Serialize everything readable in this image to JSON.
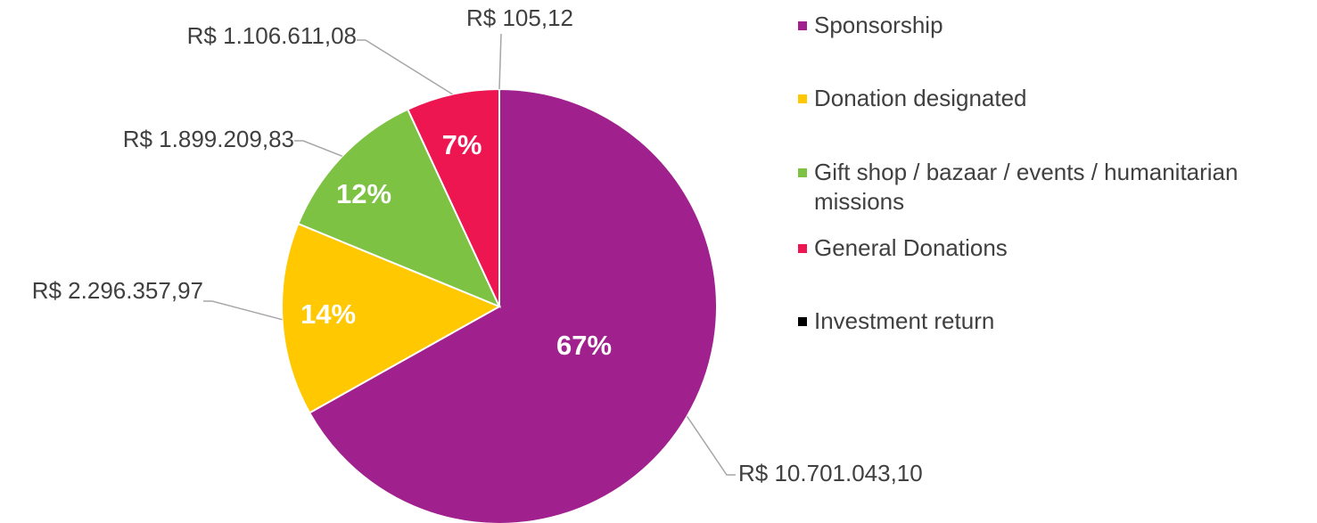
{
  "chart_data": {
    "type": "pie",
    "categories": [
      "Sponsorship",
      "Donation designated",
      "Gift shop / bazaar / events / humanitarian missions",
      "General Donations",
      "Investment return"
    ],
    "values": [
      10701043.1,
      2296357.97,
      1899209.83,
      1106611.08,
      105.12
    ],
    "value_labels": [
      "R$ 10.701.043,10",
      "R$ 2.296.357,97",
      "R$ 1.899.209,83",
      "R$ 1.106.611,08",
      "R$ 105,12"
    ],
    "percent_labels": [
      "67%",
      "14%",
      "12%",
      "7%",
      null
    ],
    "colors": [
      "#a0218e",
      "#ffc800",
      "#7dc242",
      "#ed1651",
      "#000000"
    ],
    "legend": "right"
  }
}
